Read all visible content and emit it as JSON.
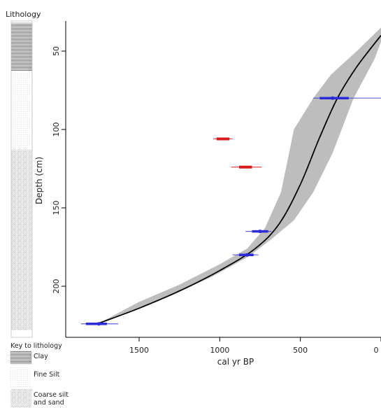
{
  "chart_data": {
    "type": "age-depth model",
    "xlabel": "cal yr BP",
    "ylabel": "Depth (cm)",
    "x_ticks": [
      1500,
      1000,
      500,
      0
    ],
    "y_ticks": [
      50,
      100,
      150,
      200
    ],
    "xlim": [
      1900,
      0
    ],
    "ylim": [
      228,
      32
    ],
    "model_median": [
      {
        "age": 0,
        "depth": 40
      },
      {
        "age": 150,
        "depth": 60
      },
      {
        "age": 270,
        "depth": 80
      },
      {
        "age": 380,
        "depth": 105
      },
      {
        "age": 500,
        "depth": 135
      },
      {
        "age": 630,
        "depth": 160
      },
      {
        "age": 780,
        "depth": 176
      },
      {
        "age": 1000,
        "depth": 190
      },
      {
        "age": 1250,
        "depth": 203
      },
      {
        "age": 1500,
        "depth": 214
      },
      {
        "age": 1760,
        "depth": 224
      }
    ],
    "uncertainty_band": {
      "upper": [
        {
          "age": 0,
          "depth": 35
        },
        {
          "age": 150,
          "depth": 50
        },
        {
          "age": 310,
          "depth": 65
        },
        {
          "age": 420,
          "depth": 80
        },
        {
          "age": 540,
          "depth": 100
        },
        {
          "age": 620,
          "depth": 140
        },
        {
          "age": 720,
          "depth": 163
        },
        {
          "age": 830,
          "depth": 176
        },
        {
          "age": 1000,
          "depth": 186
        },
        {
          "age": 1250,
          "depth": 199
        },
        {
          "age": 1500,
          "depth": 210
        },
        {
          "age": 1720,
          "depth": 222
        }
      ],
      "lower": [
        {
          "age": 1820,
          "depth": 226
        },
        {
          "age": 1560,
          "depth": 216
        },
        {
          "age": 1300,
          "depth": 206
        },
        {
          "age": 1050,
          "depth": 194
        },
        {
          "age": 820,
          "depth": 181
        },
        {
          "age": 680,
          "depth": 170
        },
        {
          "age": 540,
          "depth": 158
        },
        {
          "age": 420,
          "depth": 140
        },
        {
          "age": 300,
          "depth": 115
        },
        {
          "age": 170,
          "depth": 80
        },
        {
          "age": 40,
          "depth": 55
        },
        {
          "age": 0,
          "depth": 44
        }
      ]
    },
    "dates_accepted": [
      {
        "age": 300,
        "min": 0,
        "max": 420,
        "depth": 80,
        "core_min": 200,
        "core_max": 380
      },
      {
        "age": 750,
        "min": 680,
        "max": 840,
        "depth": 165,
        "core_min": 700,
        "core_max": 800
      },
      {
        "age": 830,
        "min": 760,
        "max": 920,
        "depth": 180,
        "core_min": 790,
        "core_max": 880
      },
      {
        "age": 1750,
        "min": 1630,
        "max": 1860,
        "depth": 224,
        "core_min": 1700,
        "core_max": 1830
      }
    ],
    "dates_rejected": [
      {
        "age": 980,
        "min": 920,
        "max": 1040,
        "depth": 106
      },
      {
        "age": 840,
        "min": 740,
        "max": 930,
        "depth": 124
      }
    ],
    "colors": {
      "band": "#bdbdbd",
      "median": "#000000",
      "accepted": "#2b2bd9",
      "rejected": "#d91c1c"
    }
  },
  "lithology": {
    "title": "Lithology",
    "key_title": "Key to lithology",
    "units": [
      {
        "name": "Clay",
        "top": 32,
        "bottom": 63
      },
      {
        "name": "Fine Silt",
        "top": 63,
        "bottom": 113
      },
      {
        "name": "Coarse silt and sand",
        "top": 113,
        "bottom": 228
      }
    ],
    "key_labels": [
      "Clay",
      "Fine Silt",
      "Coarse silt",
      "and sand"
    ]
  }
}
